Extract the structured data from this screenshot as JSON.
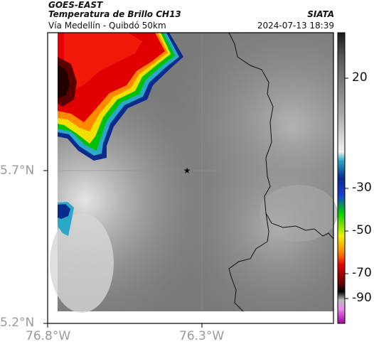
{
  "header": {
    "satellite": "GOES-EAST",
    "product": "Temperatura de Brillo CH13",
    "route": "Vía Medellín - Quibdó 50km",
    "org": "SIATA",
    "datetime": "2024-07-13 18:39"
  },
  "axes": {
    "lat_ticks": [
      "5.7°N",
      "5.2°N"
    ],
    "lon_ticks": [
      "76.8°W",
      "76.3°W"
    ]
  },
  "colorbar": {
    "labels": [
      "20",
      "-30",
      "-50",
      "-70",
      "-90"
    ],
    "stops": [
      "#1a1a1a",
      "#555555",
      "#9a9a9a",
      "#dcdcdc",
      "#ffffff",
      "#2aa8c8",
      "#0a2a8c",
      "#1840d0",
      "#00d000",
      "#f0f000",
      "#ff7a00",
      "#e00000",
      "#6a0000",
      "#000000",
      "#bbbbbb",
      "#ee88ee",
      "#a000a0"
    ]
  },
  "map": {
    "marker_icon": "star-icon"
  }
}
